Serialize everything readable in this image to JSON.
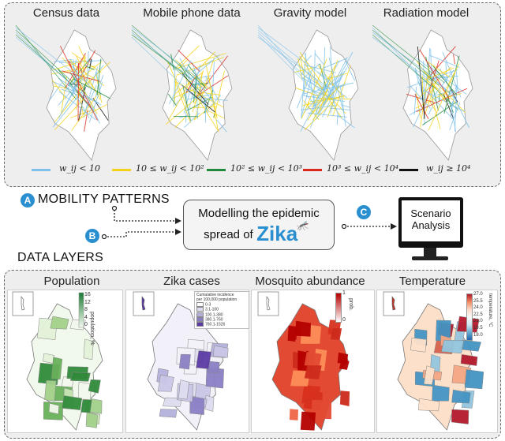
{
  "mobility": {
    "titles": [
      "Census data",
      "Mobile phone data",
      "Gravity model",
      "Radiation model"
    ],
    "legend": [
      {
        "label": "w_ij < 10",
        "color": "#7fc1ea"
      },
      {
        "label": "10 ≤ w_ij < 10²",
        "color": "#f2d21b"
      },
      {
        "label": "10² ≤ w_ij < 10³",
        "color": "#1f8a3c"
      },
      {
        "label": "10³ ≤ w_ij < 10⁴",
        "color": "#d9281c"
      },
      {
        "label": "w_ij ≥ 10⁴",
        "color": "#111111"
      }
    ]
  },
  "flow": {
    "a_letter": "A",
    "a_label": "MOBILITY PATTERNS",
    "b_letter": "B",
    "b_label": "DATA LAYERS",
    "c_letter": "C",
    "center_line1": "Modelling the epidemic",
    "center_line2": "spread of",
    "zika": "Zika",
    "monitor_line1": "Scenario",
    "monitor_line2": "Analysis"
  },
  "layers": {
    "titles": [
      "Population",
      "Zika cases",
      "Mosquito abundance",
      "Temperature"
    ],
    "population_colorbar": {
      "label": "population, %",
      "ticks": [
        "16",
        "12",
        "8",
        "4",
        "0"
      ]
    },
    "zika_legend": {
      "title1": "Cumulative incidence",
      "title2": "per 100,000 population",
      "items": [
        "0-3",
        "3.1-100",
        "100.1-380",
        "380.1-760",
        "760.1-1526"
      ],
      "colors": [
        "#ffffff",
        "#dcdcef",
        "#b3b1db",
        "#8a7fc4",
        "#5b3aa3"
      ]
    },
    "mosquito_colorbar": {
      "label": "prob.",
      "ticks": [
        "1",
        "0"
      ]
    },
    "temperature_colorbar": {
      "label": "temperature, °C",
      "ticks": [
        "27.0",
        "25.5",
        "24.0",
        "22.5",
        "21.0",
        "19.5",
        "18.0"
      ]
    }
  }
}
